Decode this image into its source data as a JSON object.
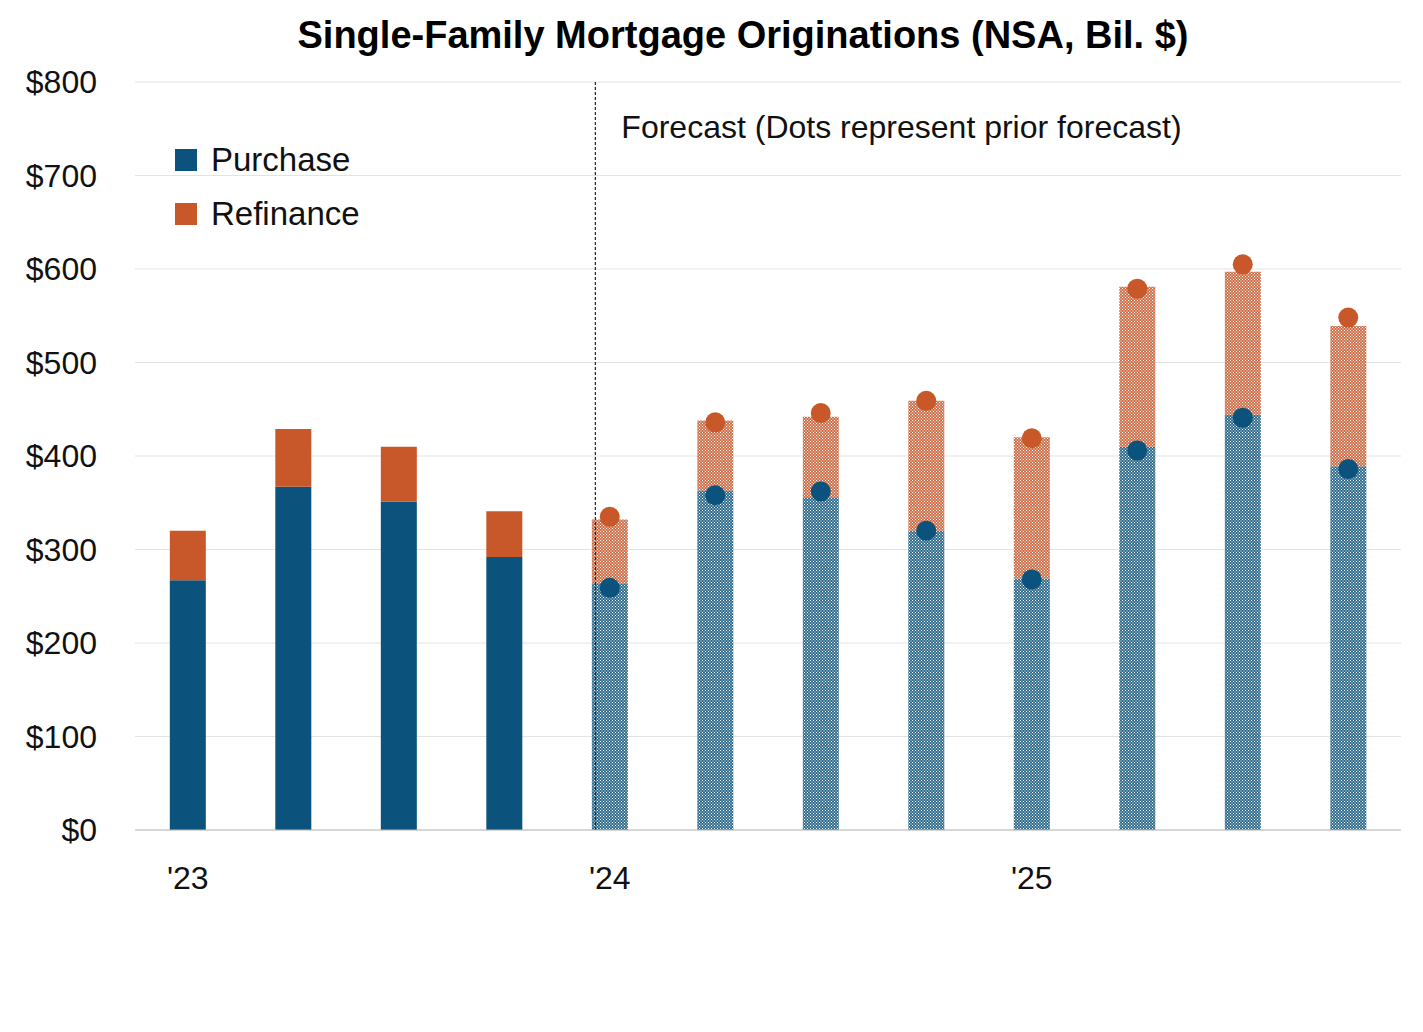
{
  "chart_data": {
    "type": "bar",
    "title": "Single-Family Mortgage Originations (NSA, Bil. $)",
    "stacked": true,
    "grid": true,
    "legend": "top-left",
    "categories": [
      "'23",
      null,
      null,
      null,
      "'24",
      null,
      null,
      null,
      "'25",
      null,
      null,
      null
    ],
    "series": [
      {
        "name": "Purchase",
        "color": "#0b527c",
        "values": [
          267,
          367,
          351,
          292,
          263,
          363,
          356,
          320,
          269,
          410,
          444,
          389
        ]
      },
      {
        "name": "Refinance",
        "color": "#c8572a",
        "values": [
          53,
          62,
          59,
          49,
          69,
          75,
          86,
          139,
          151,
          171,
          153,
          150
        ]
      }
    ],
    "prior_forecast": [
      {
        "color": "#0b527c",
        "marker": "circle",
        "values": [
          null,
          null,
          null,
          null,
          259,
          358,
          362,
          320,
          268,
          406,
          441,
          386
        ]
      },
      {
        "color": "#c8572a",
        "marker": "circle",
        "values": [
          null,
          null,
          null,
          null,
          76,
          78,
          84,
          139,
          151,
          173,
          164,
          162
        ]
      }
    ],
    "annotation": "Forecast (Dots represent prior forecast)",
    "ylim": [
      0,
      800
    ],
    "yticks": [
      {
        "value": 0,
        "label": "$0"
      },
      {
        "value": 100,
        "label": "$100"
      },
      {
        "value": 200,
        "label": "$200"
      },
      {
        "value": 300,
        "label": "$300"
      },
      {
        "value": 400,
        "label": "$400"
      },
      {
        "value": 500,
        "label": "$500"
      },
      {
        "value": 600,
        "label": "$600"
      },
      {
        "value": 700,
        "label": "$700"
      },
      {
        "value": 800,
        "label": "$800"
      }
    ]
  }
}
